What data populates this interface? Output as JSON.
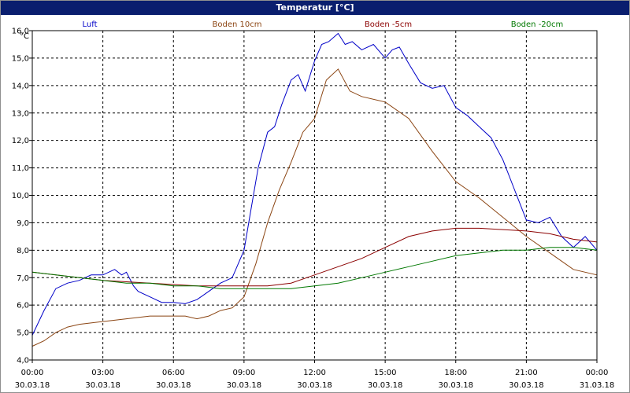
{
  "window": {
    "title": "Temperatur [°C]"
  },
  "chart_data": {
    "type": "line",
    "title": "Temperatur [°C]",
    "ylabel": "°C",
    "xlabel": "",
    "ylim": [
      4.0,
      16.0
    ],
    "y_ticks": [
      "4,0",
      "5,0",
      "6,0",
      "7,0",
      "8,0",
      "9,0",
      "10,0",
      "11,0",
      "12,0",
      "13,0",
      "14,0",
      "15,0",
      "16,0"
    ],
    "x_range_hours": [
      0,
      24
    ],
    "x_ticks": [
      {
        "time": "00:00",
        "date": "30.03.18"
      },
      {
        "time": "03:00",
        "date": "30.03.18"
      },
      {
        "time": "06:00",
        "date": "30.03.18"
      },
      {
        "time": "09:00",
        "date": "30.03.18"
      },
      {
        "time": "12:00",
        "date": "30.03.18"
      },
      {
        "time": "15:00",
        "date": "30.03.18"
      },
      {
        "time": "18:00",
        "date": "30.03.18"
      },
      {
        "time": "21:00",
        "date": "30.03.18"
      },
      {
        "time": "00:00",
        "date": "31.03.18"
      }
    ],
    "grid": true,
    "legend_position": "top",
    "series": [
      {
        "name": "Luft",
        "color": "#0000c8",
        "x": [
          0,
          0.5,
          1,
          1.5,
          2,
          2.5,
          3,
          3.5,
          3.8,
          4,
          4.3,
          4.5,
          5,
          5.5,
          6,
          6.5,
          7,
          7.5,
          8,
          8.5,
          9,
          9.3,
          9.6,
          10,
          10.3,
          10.6,
          11,
          11.3,
          11.6,
          12,
          12.3,
          12.6,
          13,
          13.3,
          13.6,
          14,
          14.5,
          15,
          15.3,
          15.6,
          16,
          16.5,
          17,
          17.5,
          18,
          18.5,
          19,
          19.5,
          20,
          20.5,
          21,
          21.5,
          22,
          22.5,
          23,
          23.5,
          24
        ],
        "values": [
          4.9,
          5.8,
          6.6,
          6.8,
          6.9,
          7.1,
          7.1,
          7.3,
          7.1,
          7.2,
          6.7,
          6.5,
          6.3,
          6.1,
          6.1,
          6.05,
          6.2,
          6.5,
          6.8,
          7.0,
          8.0,
          9.5,
          11.0,
          12.3,
          12.5,
          13.3,
          14.2,
          14.4,
          13.8,
          14.9,
          15.5,
          15.6,
          15.9,
          15.5,
          15.6,
          15.3,
          15.5,
          15.0,
          15.3,
          15.4,
          14.8,
          14.1,
          13.9,
          14.0,
          13.2,
          12.9,
          12.5,
          12.1,
          11.3,
          10.2,
          9.1,
          9.0,
          9.2,
          8.5,
          8.1,
          8.5,
          8.0
        ]
      },
      {
        "name": "Boden 10cm",
        "color": "#8b4513",
        "x": [
          0,
          0.5,
          1,
          1.5,
          2,
          3,
          4,
          5,
          6,
          6.5,
          7,
          7.5,
          8,
          8.5,
          9,
          9.5,
          10,
          10.5,
          11,
          11.5,
          12,
          12.5,
          13,
          13.5,
          14,
          15,
          16,
          17,
          18,
          19,
          20,
          21,
          22,
          23,
          24
        ],
        "values": [
          4.5,
          4.7,
          5.0,
          5.2,
          5.3,
          5.4,
          5.5,
          5.6,
          5.6,
          5.6,
          5.5,
          5.6,
          5.8,
          5.9,
          6.3,
          7.5,
          9.0,
          10.2,
          11.2,
          12.3,
          12.8,
          14.2,
          14.6,
          13.8,
          13.6,
          13.4,
          12.8,
          11.6,
          10.5,
          9.9,
          9.2,
          8.5,
          7.9,
          7.3,
          7.1
        ]
      },
      {
        "name": "Boden -5cm",
        "color": "#8b0000",
        "x": [
          0,
          1,
          2,
          3,
          4,
          5,
          6,
          7,
          8,
          9,
          10,
          11,
          12,
          13,
          14,
          15,
          16,
          17,
          18,
          19,
          20,
          21,
          22,
          23,
          24
        ],
        "values": [
          7.2,
          7.1,
          7.0,
          6.9,
          6.85,
          6.8,
          6.75,
          6.7,
          6.7,
          6.7,
          6.7,
          6.8,
          7.1,
          7.4,
          7.7,
          8.1,
          8.5,
          8.7,
          8.8,
          8.8,
          8.75,
          8.7,
          8.6,
          8.4,
          8.3
        ]
      },
      {
        "name": "Boden -20cm",
        "color": "#007800",
        "x": [
          0,
          1,
          2,
          3,
          4,
          5,
          6,
          7,
          8,
          9,
          10,
          11,
          12,
          13,
          14,
          15,
          16,
          17,
          18,
          19,
          20,
          21,
          22,
          23,
          24
        ],
        "values": [
          7.2,
          7.1,
          7.0,
          6.9,
          6.8,
          6.8,
          6.7,
          6.7,
          6.6,
          6.6,
          6.6,
          6.6,
          6.7,
          6.8,
          7.0,
          7.2,
          7.4,
          7.6,
          7.8,
          7.9,
          8.0,
          8.0,
          8.1,
          8.1,
          8.0
        ]
      }
    ]
  }
}
